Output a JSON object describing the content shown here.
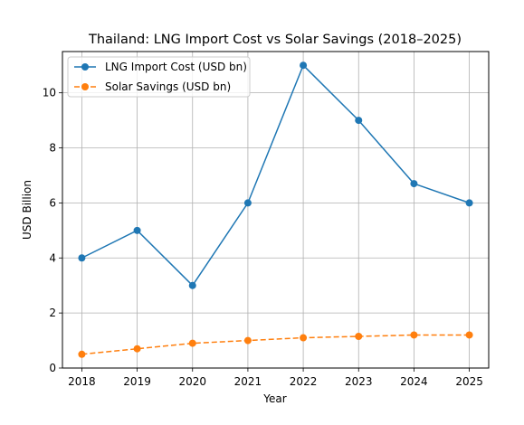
{
  "chart_data": {
    "type": "line",
    "title": "Thailand: LNG Import Cost vs Solar Savings (2018–2025)",
    "xlabel": "Year",
    "ylabel": "USD Billion",
    "x": [
      2018,
      2019,
      2020,
      2021,
      2022,
      2023,
      2024,
      2025
    ],
    "x_tick_labels": [
      "2018",
      "2019",
      "2020",
      "2021",
      "2022",
      "2023",
      "2024",
      "2025"
    ],
    "xlim": [
      2017.65,
      2025.35
    ],
    "ylim": [
      0,
      11.5
    ],
    "y_ticks": [
      0,
      2,
      4,
      6,
      8,
      10
    ],
    "y_tick_labels": [
      "0",
      "2",
      "4",
      "6",
      "8",
      "10"
    ],
    "grid": true,
    "legend_position": "top-left",
    "series": [
      {
        "name": "LNG Import Cost (USD bn)",
        "values": [
          4.0,
          5.0,
          3.0,
          6.0,
          11.0,
          9.0,
          6.7,
          6.0
        ],
        "color": "#1f77b4",
        "line_style": "solid",
        "marker": "circle"
      },
      {
        "name": "Solar Savings (USD bn)",
        "values": [
          0.5,
          0.7,
          0.9,
          1.0,
          1.1,
          1.15,
          1.2,
          1.2
        ],
        "color": "#ff7f0e",
        "line_style": "dashed",
        "marker": "circle"
      }
    ]
  }
}
